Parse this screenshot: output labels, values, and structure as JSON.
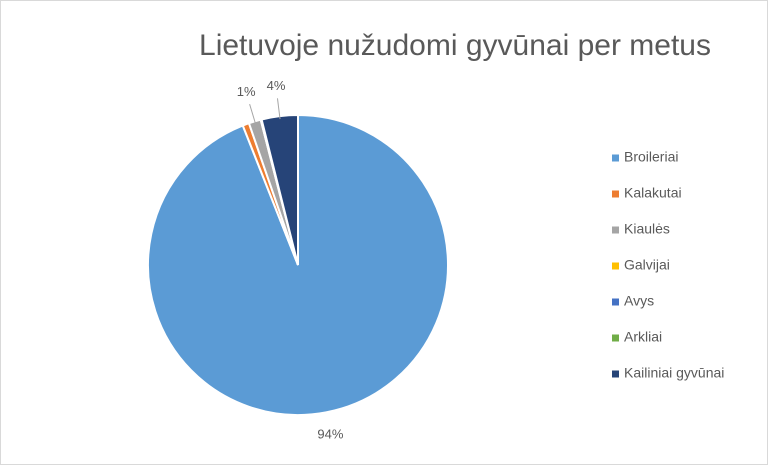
{
  "chart_data": {
    "type": "pie",
    "title": "Lietuvoje nužudomi gyvūnai per metus",
    "categories": [
      "Broileriai",
      "Kalakutai",
      "Kiaulės",
      "Galvijai",
      "Avys",
      "Arkliai",
      "Kailiniai gyvūnai"
    ],
    "values": [
      94,
      0.7,
      1.3,
      0.1,
      0,
      0,
      3.9
    ],
    "value_labels": [
      "94%",
      null,
      "1%",
      null,
      null,
      null,
      "4%"
    ],
    "colors": [
      "#5b9bd5",
      "#ed7d31",
      "#a5a5a5",
      "#ffc000",
      "#4472c4",
      "#70ad47",
      "#264478"
    ],
    "legend": "right"
  }
}
